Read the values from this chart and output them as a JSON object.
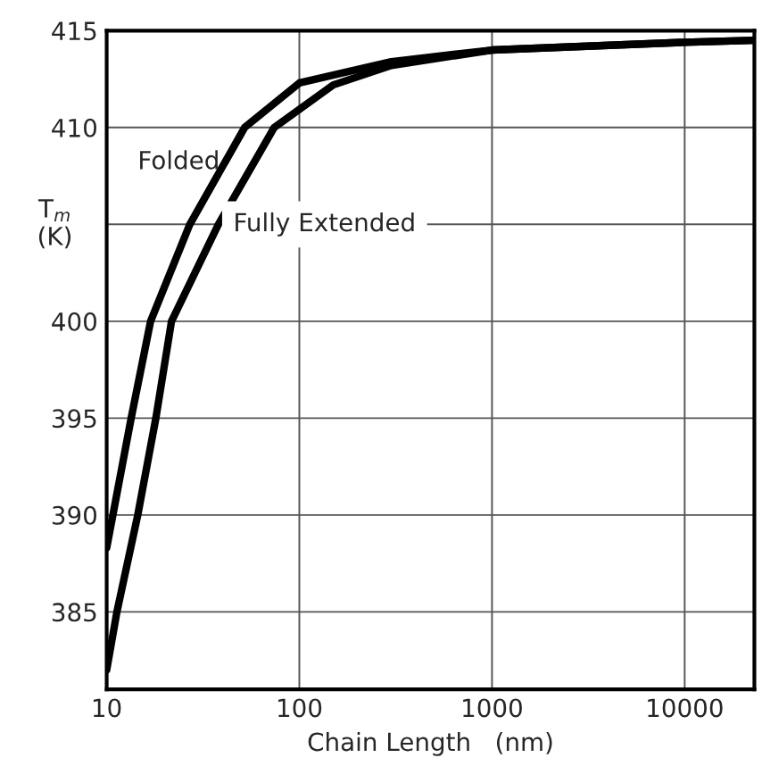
{
  "chart_data": {
    "type": "line",
    "xlabel": "Chain Length   (nm)",
    "ylabel": "T$_{m}$\n(K)",
    "log": "x",
    "xlim": [
      10,
      23000
    ],
    "xticks": [
      10,
      100,
      1000,
      10000
    ],
    "ylim": [
      381,
      415
    ],
    "yticks": [
      385,
      390,
      395,
      400,
      {
        "value": 405,
        "label": null
      },
      410,
      415
    ],
    "grid": true,
    "legend": false,
    "marker": "none",
    "line_style": "solid",
    "series": [
      {
        "name": "Folded",
        "color": "#000000",
        "x": [
          10,
          13.4,
          16.9,
          27,
          52,
          100,
          300,
          1000,
          10000,
          23000
        ],
        "values": [
          388.3,
          395,
          400,
          405,
          410,
          412.3,
          413.4,
          414.0,
          414.4,
          414.5
        ]
      },
      {
        "name": "Fully Extended",
        "color": "#000000",
        "x": [
          10,
          11.3,
          14.5,
          18,
          21.7,
          38,
          74,
          150,
          300,
          1000,
          10000,
          23000
        ],
        "values": [
          382,
          385,
          390,
          395,
          400,
          405,
          410,
          412.2,
          413.2,
          414.0,
          414.4,
          414.5
        ]
      }
    ]
  }
}
